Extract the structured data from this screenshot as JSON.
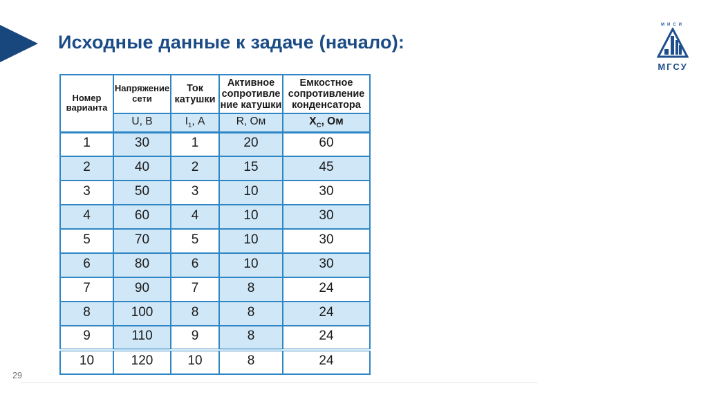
{
  "slide": {
    "title": "Исходные данные к задаче (начало):",
    "page_number": "29"
  },
  "logo": {
    "top_text": "МИСИ",
    "bottom_text": "МГСУ"
  },
  "colors": {
    "navy_accent": "#17477d",
    "title_color": "#1b4c86",
    "table_border": "#2e86c4",
    "cell_fill": "#cfe7f7",
    "page_number_gray": "#6f6f6f"
  },
  "table": {
    "header": {
      "variant_title": "Номер\nварианта",
      "groups": [
        {
          "title": "Напряжение\nсети",
          "unit_main": "U, В"
        },
        {
          "title": "Ток\nкатушки",
          "unit_main": "I",
          "unit_sub": "1",
          "unit_rest": ", А"
        },
        {
          "title": "Активное\nсопротивле\nние катушки",
          "unit_main": "R, Ом"
        },
        {
          "title": "Емкостное\nсопротивление\nконденсатора",
          "unit_main": "X",
          "unit_sub": "C",
          "unit_rest": ", Ом"
        }
      ]
    },
    "rows": [
      {
        "variant": "1",
        "values": [
          "30",
          "1",
          "20",
          "60"
        ],
        "band": "alt"
      },
      {
        "variant": "2",
        "values": [
          "40",
          "2",
          "15",
          "45"
        ],
        "band": "full"
      },
      {
        "variant": "3",
        "values": [
          "50",
          "3",
          "10",
          "30"
        ],
        "band": "alt"
      },
      {
        "variant": "4",
        "values": [
          "60",
          "4",
          "10",
          "30"
        ],
        "band": "full"
      },
      {
        "variant": "5",
        "values": [
          "70",
          "5",
          "10",
          "30"
        ],
        "band": "alt"
      },
      {
        "variant": "6",
        "values": [
          "80",
          "6",
          "10",
          "30"
        ],
        "band": "full"
      },
      {
        "variant": "7",
        "values": [
          "90",
          "7",
          "8",
          "24"
        ],
        "band": "alt"
      },
      {
        "variant": "8",
        "values": [
          "100",
          "8",
          "8",
          "24"
        ],
        "band": "full"
      },
      {
        "variant": "9",
        "values": [
          "110",
          "9",
          "8",
          "24"
        ],
        "band": "alt"
      },
      {
        "variant": "10",
        "values": [
          "120",
          "10",
          "8",
          "24"
        ],
        "band": "none"
      }
    ]
  }
}
